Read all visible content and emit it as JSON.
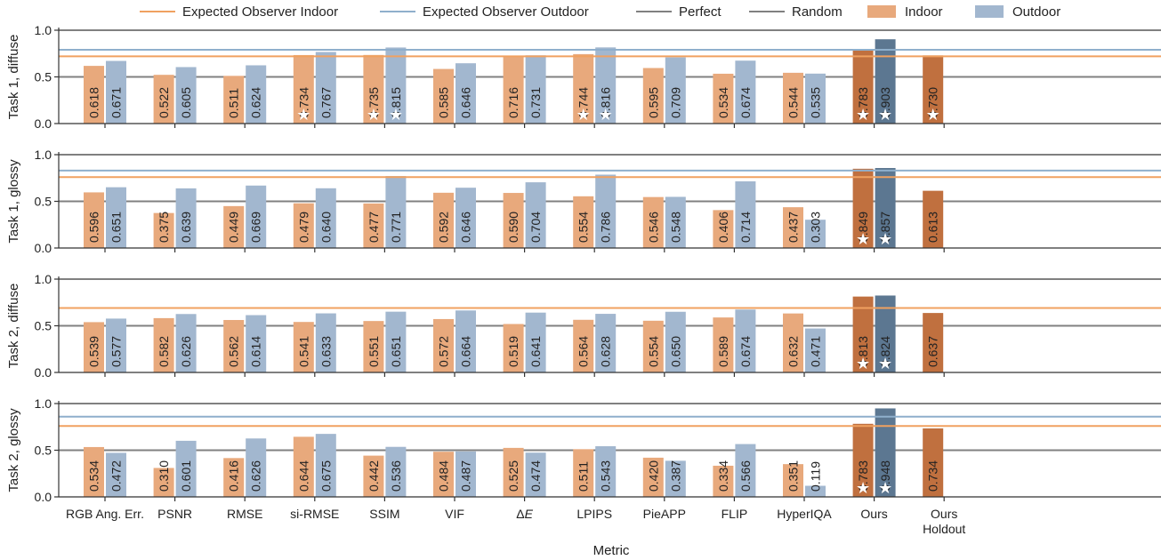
{
  "chart_data": {
    "type": "bar",
    "xlabel": "Metric",
    "categories": [
      "RGB Ang. Err.",
      "PSNR",
      "RMSE",
      "si-RMSE",
      "SSIM",
      "VIF",
      "ΔE",
      "LPIPS",
      "PieAPP",
      "FLIP",
      "HyperIQA",
      "Ours",
      "Ours\nHoldout"
    ],
    "legend": [
      {
        "label": "Expected Observer Indoor",
        "kind": "line",
        "color": "#f0a160"
      },
      {
        "label": "Expected Observer Outdoor",
        "kind": "line",
        "color": "#8fafcc"
      },
      {
        "label": "Perfect",
        "kind": "line",
        "color": "#808080"
      },
      {
        "label": "Random",
        "kind": "line",
        "color": "#808080"
      },
      {
        "label": "Indoor",
        "kind": "patch",
        "color": "#e8a97c"
      },
      {
        "label": "Outdoor",
        "kind": "patch",
        "color": "#a2b7cf"
      }
    ],
    "legend_position": "top",
    "colors": {
      "indoor": "#e8a97c",
      "outdoor": "#a2b7cf",
      "ours_indoor": "#c0703f",
      "ours_outdoor": "#5c7791",
      "expected_indoor": "#f0a160",
      "expected_outdoor": "#8fafcc",
      "reference": "#808080"
    },
    "panels": [
      {
        "ylabel": "Task 1, diffuse",
        "ylim": [
          0,
          1
        ],
        "yticks": [
          "0.0",
          "0.5",
          "1.0"
        ],
        "expected_indoor": 0.72,
        "expected_outdoor": 0.79,
        "series": [
          {
            "name": "Indoor",
            "values": [
              0.618,
              0.522,
              0.511,
              0.734,
              0.735,
              0.585,
              0.716,
              0.744,
              0.595,
              0.534,
              0.544,
              0.783,
              0.73
            ],
            "labels": [
              "0.618",
              "0.522",
              "0.511",
              "0.734",
              "0.735",
              "0.585",
              "0.716",
              "0.744",
              "0.595",
              "0.534",
              "0.544",
              "0.783",
              "0.730"
            ],
            "stars": [
              3,
              4,
              7,
              11,
              12
            ]
          },
          {
            "name": "Outdoor",
            "values": [
              0.671,
              0.605,
              0.624,
              0.767,
              0.815,
              0.646,
              0.731,
              0.816,
              0.709,
              0.674,
              0.535,
              0.903,
              null
            ],
            "labels": [
              "0.671",
              "0.605",
              "0.624",
              "0.767",
              "0.815",
              "0.646",
              "0.731",
              "0.816",
              "0.709",
              "0.674",
              "0.535",
              "0.903",
              ""
            ],
            "stars": [
              4,
              7,
              11
            ]
          }
        ]
      },
      {
        "ylabel": "Task 1, glossy",
        "ylim": [
          0,
          1
        ],
        "yticks": [
          "0.0",
          "0.5",
          "1.0"
        ],
        "expected_indoor": 0.76,
        "expected_outdoor": 0.83,
        "series": [
          {
            "name": "Indoor",
            "values": [
              0.596,
              0.375,
              0.449,
              0.479,
              0.477,
              0.592,
              0.59,
              0.554,
              0.546,
              0.406,
              0.437,
              0.849,
              0.613
            ],
            "labels": [
              "0.596",
              "0.375",
              "0.449",
              "0.479",
              "0.477",
              "0.592",
              "0.590",
              "0.554",
              "0.546",
              "0.406",
              "0.437",
              "0.849",
              "0.613"
            ],
            "stars": [
              11
            ]
          },
          {
            "name": "Outdoor",
            "values": [
              0.651,
              0.639,
              0.669,
              0.64,
              0.771,
              0.646,
              0.704,
              0.786,
              0.548,
              0.714,
              0.303,
              0.857,
              null
            ],
            "labels": [
              "0.651",
              "0.639",
              "0.669",
              "0.640",
              "0.771",
              "0.646",
              "0.704",
              "0.786",
              "0.548",
              "0.714",
              "0.303",
              "0.857",
              ""
            ],
            "stars": [
              11
            ]
          }
        ]
      },
      {
        "ylabel": "Task 2, diffuse",
        "ylim": [
          0,
          1
        ],
        "yticks": [
          "0.0",
          "0.5",
          "1.0"
        ],
        "expected_indoor": 0.69,
        "expected_outdoor": 0.69,
        "series": [
          {
            "name": "Indoor",
            "values": [
              0.539,
              0.582,
              0.562,
              0.541,
              0.551,
              0.572,
              0.519,
              0.564,
              0.554,
              0.589,
              0.632,
              0.813,
              0.637
            ],
            "labels": [
              "0.539",
              "0.582",
              "0.562",
              "0.541",
              "0.551",
              "0.572",
              "0.519",
              "0.564",
              "0.554",
              "0.589",
              "0.632",
              "0.813",
              "0.637"
            ],
            "stars": [
              11
            ]
          },
          {
            "name": "Outdoor",
            "values": [
              0.577,
              0.626,
              0.614,
              0.633,
              0.651,
              0.664,
              0.641,
              0.628,
              0.65,
              0.674,
              0.471,
              0.824,
              null
            ],
            "labels": [
              "0.577",
              "0.626",
              "0.614",
              "0.633",
              "0.651",
              "0.664",
              "0.641",
              "0.628",
              "0.650",
              "0.674",
              "0.471",
              "0.824",
              ""
            ],
            "stars": [
              11
            ]
          }
        ]
      },
      {
        "ylabel": "Task 2, glossy",
        "ylim": [
          0,
          1
        ],
        "yticks": [
          "0.0",
          "0.5",
          "1.0"
        ],
        "expected_indoor": 0.76,
        "expected_outdoor": 0.86,
        "series": [
          {
            "name": "Indoor",
            "values": [
              0.534,
              0.31,
              0.416,
              0.644,
              0.442,
              0.484,
              0.525,
              0.511,
              0.42,
              0.334,
              0.351,
              0.783,
              0.734
            ],
            "labels": [
              "0.534",
              "0.310",
              "0.416",
              "0.644",
              "0.442",
              "0.484",
              "0.525",
              "0.511",
              "0.420",
              "0.334",
              "0.351",
              "0.783",
              "0.734"
            ],
            "stars": [
              11
            ]
          },
          {
            "name": "Outdoor",
            "values": [
              0.472,
              0.601,
              0.626,
              0.675,
              0.536,
              0.487,
              0.474,
              0.543,
              0.387,
              0.566,
              0.119,
              0.948,
              null
            ],
            "labels": [
              "0.472",
              "0.601",
              "0.626",
              "0.675",
              "0.536",
              "0.487",
              "0.474",
              "0.543",
              "0.387",
              "0.566",
              "0.119",
              "0.948",
              ""
            ],
            "stars": [
              11
            ]
          }
        ]
      }
    ]
  }
}
